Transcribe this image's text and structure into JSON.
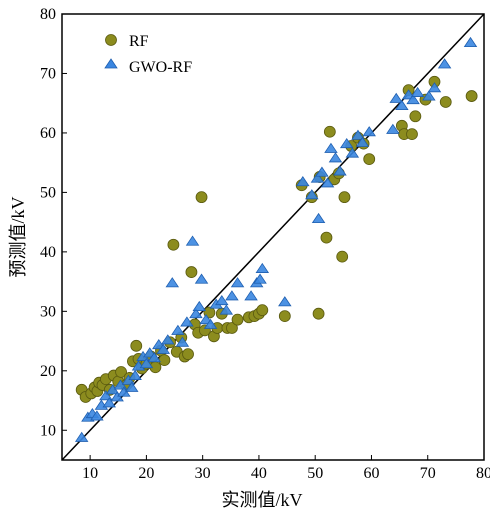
{
  "chart_data": {
    "type": "scatter",
    "xlabel": "实测值/kV",
    "ylabel": "预测值/kV",
    "xlim": [
      5,
      80
    ],
    "ylim": [
      5,
      80
    ],
    "xticks": [
      10,
      20,
      30,
      40,
      50,
      60,
      70,
      80
    ],
    "yticks": [
      10,
      20,
      30,
      40,
      50,
      60,
      70,
      80
    ],
    "reference_line": {
      "from": [
        5,
        5
      ],
      "to": [
        80,
        80
      ]
    },
    "legend_position": "top-left",
    "grid": false,
    "series": [
      {
        "name": "RF",
        "marker": "circle",
        "color": "#8c8c1e",
        "points": [
          [
            8.5,
            16.8
          ],
          [
            9.2,
            15.6
          ],
          [
            10.2,
            16.2
          ],
          [
            10.8,
            17.2
          ],
          [
            11.3,
            16.6
          ],
          [
            11.6,
            18.0
          ],
          [
            12.2,
            17.6
          ],
          [
            12.8,
            18.6
          ],
          [
            13.5,
            16.8
          ],
          [
            14.2,
            19.2
          ],
          [
            15.0,
            18.2
          ],
          [
            15.5,
            19.8
          ],
          [
            16.4,
            17.6
          ],
          [
            17.0,
            18.8
          ],
          [
            17.6,
            21.6
          ],
          [
            18.2,
            24.2
          ],
          [
            18.6,
            22.0
          ],
          [
            19.2,
            20.4
          ],
          [
            20.0,
            21.2
          ],
          [
            20.8,
            22.4
          ],
          [
            21.6,
            20.6
          ],
          [
            22.6,
            23.4
          ],
          [
            23.2,
            21.8
          ],
          [
            24.2,
            24.8
          ],
          [
            24.8,
            41.2
          ],
          [
            25.4,
            23.2
          ],
          [
            26.2,
            25.6
          ],
          [
            26.8,
            22.4
          ],
          [
            27.4,
            22.8
          ],
          [
            28.0,
            36.6
          ],
          [
            28.6,
            27.8
          ],
          [
            29.2,
            26.4
          ],
          [
            29.8,
            49.2
          ],
          [
            30.4,
            26.8
          ],
          [
            31.2,
            29.8
          ],
          [
            32.0,
            25.8
          ],
          [
            32.6,
            27.2
          ],
          [
            33.4,
            29.6
          ],
          [
            34.4,
            27.2
          ],
          [
            35.2,
            27.2
          ],
          [
            36.2,
            28.6
          ],
          [
            38.2,
            29.0
          ],
          [
            39.2,
            29.2
          ],
          [
            40.0,
            29.6
          ],
          [
            40.6,
            30.2
          ],
          [
            44.6,
            29.2
          ],
          [
            47.6,
            51.2
          ],
          [
            49.4,
            49.2
          ],
          [
            50.6,
            29.6
          ],
          [
            50.8,
            52.6
          ],
          [
            52.0,
            42.4
          ],
          [
            52.6,
            60.2
          ],
          [
            53.4,
            52.2
          ],
          [
            54.2,
            53.2
          ],
          [
            54.8,
            39.2
          ],
          [
            55.2,
            49.2
          ],
          [
            56.4,
            57.8
          ],
          [
            57.6,
            59.2
          ],
          [
            58.6,
            58.2
          ],
          [
            59.6,
            55.6
          ],
          [
            65.4,
            61.2
          ],
          [
            65.8,
            59.8
          ],
          [
            66.6,
            67.2
          ],
          [
            67.2,
            59.8
          ],
          [
            67.8,
            62.8
          ],
          [
            69.6,
            65.6
          ],
          [
            71.2,
            68.6
          ],
          [
            73.2,
            65.2
          ],
          [
            77.8,
            66.2
          ]
        ]
      },
      {
        "name": "GWO-RF",
        "marker": "triangle",
        "color": "#1f6fd0",
        "points": [
          [
            8.5,
            8.8
          ],
          [
            9.6,
            12.2
          ],
          [
            10.4,
            12.8
          ],
          [
            11.2,
            12.4
          ],
          [
            12.0,
            14.2
          ],
          [
            12.8,
            15.8
          ],
          [
            13.4,
            14.6
          ],
          [
            14.0,
            16.8
          ],
          [
            14.8,
            15.6
          ],
          [
            15.4,
            17.6
          ],
          [
            16.0,
            16.4
          ],
          [
            16.8,
            18.4
          ],
          [
            17.4,
            17.2
          ],
          [
            18.0,
            19.2
          ],
          [
            18.6,
            20.8
          ],
          [
            19.4,
            22.4
          ],
          [
            20.0,
            21.2
          ],
          [
            20.6,
            23.0
          ],
          [
            21.4,
            22.2
          ],
          [
            22.2,
            24.4
          ],
          [
            23.0,
            23.6
          ],
          [
            23.8,
            25.2
          ],
          [
            24.6,
            34.8
          ],
          [
            25.6,
            26.8
          ],
          [
            26.4,
            24.8
          ],
          [
            27.2,
            28.2
          ],
          [
            28.2,
            41.8
          ],
          [
            28.8,
            29.6
          ],
          [
            29.4,
            30.8
          ],
          [
            29.8,
            35.4
          ],
          [
            30.6,
            28.6
          ],
          [
            31.4,
            27.8
          ],
          [
            32.4,
            31.2
          ],
          [
            33.4,
            31.8
          ],
          [
            34.2,
            30.2
          ],
          [
            35.2,
            32.6
          ],
          [
            36.2,
            34.8
          ],
          [
            38.6,
            32.6
          ],
          [
            39.6,
            34.8
          ],
          [
            40.2,
            35.4
          ],
          [
            40.6,
            37.2
          ],
          [
            44.6,
            31.6
          ],
          [
            47.8,
            51.8
          ],
          [
            49.4,
            49.6
          ],
          [
            50.4,
            52.4
          ],
          [
            50.6,
            45.6
          ],
          [
            51.2,
            53.4
          ],
          [
            52.2,
            51.6
          ],
          [
            52.8,
            57.4
          ],
          [
            53.6,
            55.8
          ],
          [
            54.4,
            53.6
          ],
          [
            55.6,
            58.2
          ],
          [
            56.6,
            56.6
          ],
          [
            57.6,
            59.6
          ],
          [
            58.4,
            58.4
          ],
          [
            59.6,
            60.2
          ],
          [
            63.8,
            60.6
          ],
          [
            64.4,
            65.8
          ],
          [
            65.4,
            64.6
          ],
          [
            66.6,
            66.4
          ],
          [
            67.4,
            65.6
          ],
          [
            68.2,
            66.8
          ],
          [
            70.2,
            66.2
          ],
          [
            71.2,
            67.6
          ],
          [
            73.0,
            71.6
          ],
          [
            77.6,
            75.2
          ]
        ]
      }
    ]
  }
}
